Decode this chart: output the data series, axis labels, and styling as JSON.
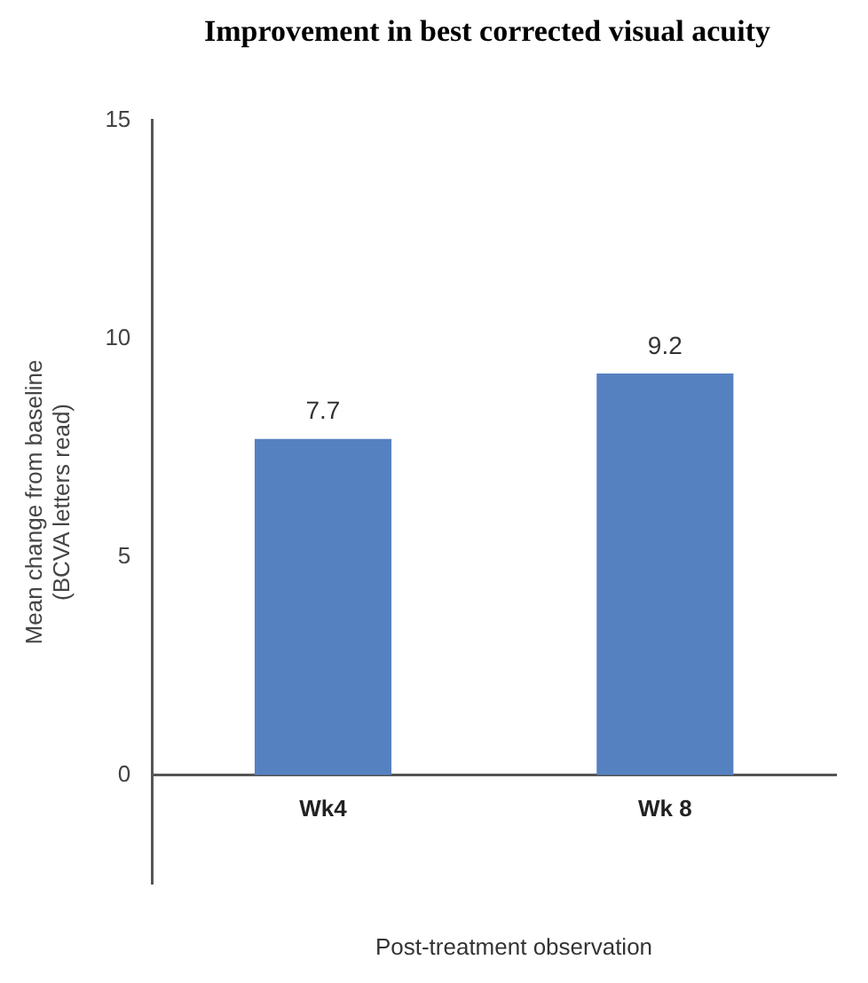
{
  "chart_data": {
    "type": "bar",
    "title": "Improvement in best corrected visual acuity",
    "xlabel": "Post-treatment observation",
    "ylabel": "Mean change from baseline\n(BCVA letters read)",
    "categories": [
      "Wk4",
      "Wk 8"
    ],
    "values": [
      7.7,
      9.2
    ],
    "color": "#5681c1",
    "ylim": [
      -2.5,
      15
    ],
    "yticks": [
      0,
      5,
      10,
      15
    ],
    "grid": false,
    "legend": false,
    "data_labels": true
  }
}
